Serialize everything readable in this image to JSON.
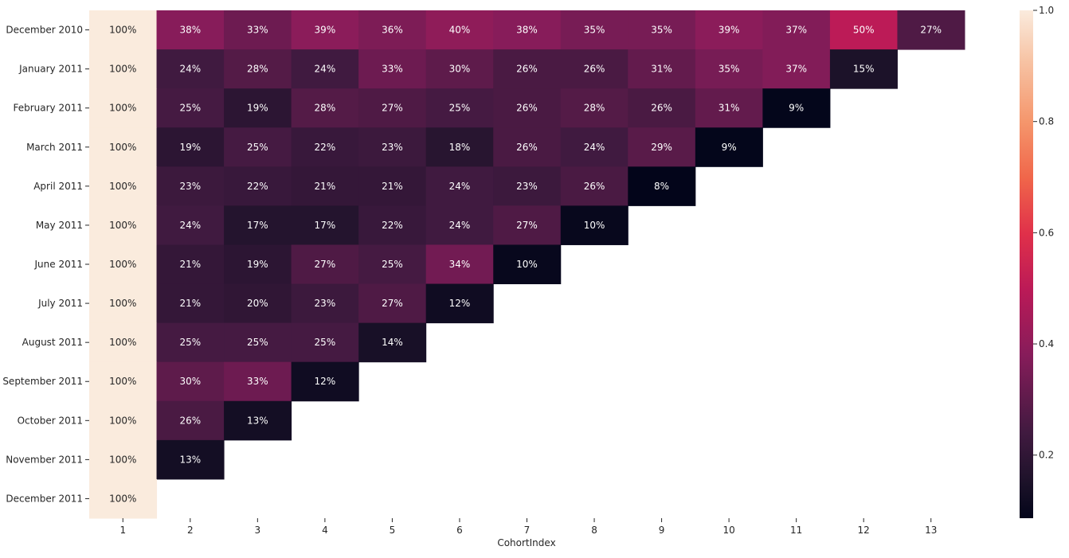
{
  "chart_data": {
    "type": "heatmap",
    "xlabel": "CohortIndex",
    "ylabel": "",
    "x_tick_labels": [
      "1",
      "2",
      "3",
      "4",
      "5",
      "6",
      "7",
      "8",
      "9",
      "10",
      "11",
      "12",
      "13"
    ],
    "y_tick_labels": [
      "December 2010",
      "January 2011",
      "February 2011",
      "March 2011",
      "April 2011",
      "May 2011",
      "June 2011",
      "July 2011",
      "August 2011",
      "September 2011",
      "October 2011",
      "November 2011",
      "December 2011"
    ],
    "value_format": "percent",
    "values_percent": [
      [
        100,
        38,
        33,
        39,
        36,
        40,
        38,
        35,
        35,
        39,
        37,
        50,
        27
      ],
      [
        100,
        24,
        28,
        24,
        33,
        30,
        26,
        26,
        31,
        35,
        37,
        15
      ],
      [
        100,
        25,
        19,
        28,
        27,
        25,
        26,
        28,
        26,
        31,
        9
      ],
      [
        100,
        19,
        25,
        22,
        23,
        18,
        26,
        24,
        29,
        9
      ],
      [
        100,
        23,
        22,
        21,
        21,
        24,
        23,
        26,
        8
      ],
      [
        100,
        24,
        17,
        17,
        22,
        24,
        27,
        10
      ],
      [
        100,
        21,
        19,
        27,
        25,
        34,
        10
      ],
      [
        100,
        21,
        20,
        23,
        27,
        12
      ],
      [
        100,
        25,
        25,
        25,
        14
      ],
      [
        100,
        30,
        33,
        12
      ],
      [
        100,
        26,
        13
      ],
      [
        100,
        13
      ],
      [
        100
      ]
    ],
    "colormap": "rocket",
    "color_range": [
      0.08,
      1.0
    ],
    "colorbar_ticks": [
      "0.2",
      "0.4",
      "0.6",
      "0.8",
      "1.0"
    ],
    "grid": false
  }
}
